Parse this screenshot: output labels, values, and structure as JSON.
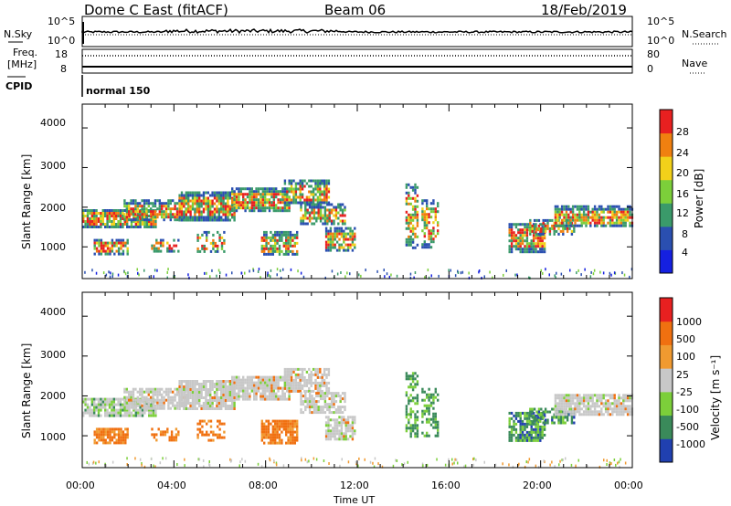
{
  "header": {
    "radar": "Dome C East (fitACF)",
    "beam": "Beam 06",
    "date": "18/Feb/2019"
  },
  "status_panels": {
    "nsky_label": "N.Sky",
    "nsearch_label": "N.Search",
    "nsky_ticks": [
      "10^5",
      "10^0"
    ],
    "nsearch_ticks": [
      "10^5",
      "10^0"
    ],
    "freq_label_line1": "Freq.",
    "freq_label_line2": "[MHz]",
    "freq_ticks": [
      "18",
      "8"
    ],
    "nave_label": "Nave",
    "nave_ticks": [
      "80",
      "0"
    ],
    "cpid_label": "CPID",
    "cpid_value": "normal 150"
  },
  "chart_data": [
    {
      "type": "heatmap",
      "name": "power",
      "ylabel": "Slant Range [km]",
      "ylim": [
        200,
        4600
      ],
      "yticks": [
        "4000",
        "3000",
        "2000",
        "1000"
      ],
      "xlim": [
        "00:00",
        "24:00"
      ],
      "colorbar_label": "Power [dB]",
      "colorbar_ticks": [
        "28",
        "24",
        "20",
        "16",
        "12",
        "8",
        "4"
      ],
      "colors": [
        "#1520e0",
        "#2a4fb0",
        "#3a9a6a",
        "#7ccf3a",
        "#f2d11a",
        "#f08010",
        "#e82020"
      ]
    },
    {
      "type": "heatmap",
      "name": "velocity",
      "ylabel": "Slant Range [km]",
      "ylim": [
        200,
        4600
      ],
      "yticks": [
        "4000",
        "3000",
        "2000",
        "1000"
      ],
      "xlim": [
        "00:00",
        "24:00"
      ],
      "xlabel": "Time UT",
      "xticks": [
        "00:00",
        "04:00",
        "08:00",
        "12:00",
        "16:00",
        "20:00",
        "00:00"
      ],
      "colorbar_label": "Velocity [m s⁻¹]",
      "colorbar_ticks": [
        "1000",
        "500",
        "100",
        "25",
        "-25",
        "-100",
        "-500",
        "-1000"
      ],
      "colors": [
        "#2040b0",
        "#3a8a5a",
        "#7ccf3a",
        "#c8c8c8",
        "#f09a30",
        "#f07010",
        "#e82020"
      ]
    }
  ]
}
